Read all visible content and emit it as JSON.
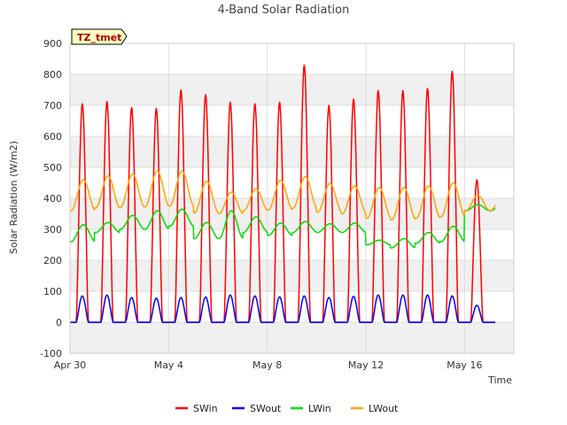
{
  "chart_data": {
    "type": "line",
    "title": "4-Band Solar Radiation",
    "xlabel": "Time",
    "ylabel": "Solar Radiation (W/m2)",
    "tag_label": "TZ_tmet",
    "ylim": [
      -100,
      900
    ],
    "y_ticks": [
      -100,
      0,
      100,
      200,
      300,
      400,
      500,
      600,
      700,
      800,
      900
    ],
    "xlim_days": [
      0,
      18
    ],
    "x_ticks": [
      {
        "day": 0,
        "label": "Apr 30"
      },
      {
        "day": 4,
        "label": "May 4"
      },
      {
        "day": 8,
        "label": "May 8"
      },
      {
        "day": 12,
        "label": "May 12"
      },
      {
        "day": 16,
        "label": "May 16"
      }
    ],
    "data_end_day": 17.25,
    "grid": true,
    "legend_position": "bottom",
    "series": [
      {
        "name": "SWin",
        "color": "#ff0000",
        "daily_peaks": [
          705,
          712,
          693,
          690,
          750,
          735,
          710,
          705,
          710,
          830,
          700,
          720,
          748,
          748,
          755,
          810,
          460
        ]
      },
      {
        "name": "SWout",
        "color": "#0000ff",
        "daily_peaks": [
          85,
          88,
          80,
          78,
          80,
          82,
          88,
          85,
          82,
          85,
          80,
          84,
          88,
          88,
          88,
          85,
          55
        ]
      },
      {
        "name": "LWin",
        "color": "#00dd00",
        "daily_peaks": [
          315,
          322,
          345,
          360,
          365,
          322,
          360,
          340,
          320,
          325,
          318,
          320,
          265,
          270,
          290,
          310,
          380
        ],
        "daily_lows": [
          260,
          290,
          300,
          300,
          310,
          270,
          270,
          290,
          280,
          290,
          290,
          290,
          250,
          240,
          255,
          260,
          360
        ]
      },
      {
        "name": "LWout",
        "color": "#ffa500",
        "daily_peaks": [
          460,
          472,
          478,
          488,
          488,
          455,
          420,
          430,
          458,
          470,
          448,
          440,
          435,
          435,
          440,
          450,
          410
        ],
        "daily_lows": [
          360,
          368,
          370,
          372,
          375,
          352,
          350,
          360,
          362,
          368,
          355,
          350,
          335,
          330,
          335,
          340,
          360
        ]
      }
    ]
  }
}
